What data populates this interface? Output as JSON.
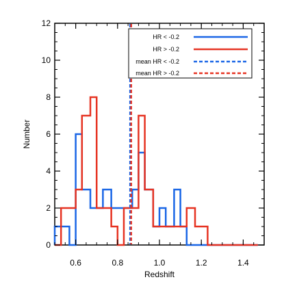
{
  "chart_data": {
    "type": "histogram",
    "title": "",
    "xlabel": "Redshift",
    "ylabel": "Number",
    "xlim": [
      0.5,
      1.5
    ],
    "ylim": [
      0,
      12
    ],
    "x_ticks": [
      0.6,
      0.8,
      1.0,
      1.2,
      1.4
    ],
    "x_tick_labels": [
      "0.6",
      "0.8",
      "1.0",
      "1.2",
      "1.4"
    ],
    "y_ticks": [
      0,
      2,
      4,
      6,
      8,
      10,
      12
    ],
    "y_tick_labels": [
      "0",
      "2",
      "4",
      "6",
      "8",
      "10",
      "12"
    ],
    "grid": false,
    "legend_position": "top-right",
    "bin_edges": [
      0.5,
      0.53,
      0.57,
      0.6,
      0.63,
      0.67,
      0.7,
      0.73,
      0.77,
      0.8,
      0.83,
      0.87,
      0.9,
      0.93,
      0.97,
      1.0,
      1.03,
      1.07,
      1.1,
      1.13,
      1.17,
      1.2,
      1.23,
      1.27,
      1.3,
      1.33,
      1.37,
      1.4,
      1.43,
      1.47
    ],
    "series": [
      {
        "name": "HR < -0.2",
        "color": "#1a66e6",
        "counts": [
          1,
          1,
          0,
          6,
          3,
          2,
          2,
          3,
          2,
          2,
          2,
          3,
          5,
          3,
          1,
          2,
          1,
          3,
          1,
          0,
          0,
          0,
          0,
          0,
          0,
          0,
          0,
          0,
          0
        ]
      },
      {
        "name": "HR > -0.2",
        "color": "#e63322",
        "counts": [
          0,
          2,
          2,
          3,
          7,
          8,
          2,
          2,
          1,
          0,
          2,
          2,
          7,
          3,
          1,
          1,
          1,
          1,
          1,
          2,
          1,
          1,
          0,
          0,
          0,
          0,
          0,
          0,
          0
        ]
      }
    ],
    "mean_lines": [
      {
        "name": "mean HR < -0.2",
        "color": "#1a66e6",
        "x": 0.86
      },
      {
        "name": "mean HR > -0.2",
        "color": "#e63322",
        "x": 0.865
      }
    ]
  }
}
